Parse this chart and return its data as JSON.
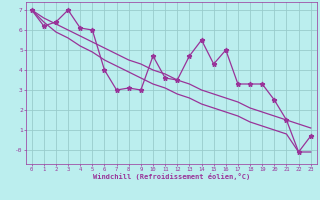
{
  "x": [
    0,
    1,
    2,
    3,
    4,
    5,
    6,
    7,
    8,
    9,
    10,
    11,
    12,
    13,
    14,
    15,
    16,
    17,
    18,
    19,
    20,
    21,
    22,
    23
  ],
  "y_data": [
    7.0,
    6.2,
    6.4,
    7.0,
    6.1,
    6.0,
    4.0,
    3.0,
    3.1,
    3.0,
    4.7,
    3.6,
    3.5,
    4.7,
    5.5,
    4.3,
    5.0,
    3.3,
    3.3,
    3.3,
    2.5,
    1.5,
    -0.1,
    0.7
  ],
  "y_upper": [
    7.0,
    6.6,
    6.3,
    6.0,
    5.7,
    5.4,
    5.1,
    4.8,
    4.5,
    4.3,
    4.0,
    3.8,
    3.5,
    3.3,
    3.0,
    2.8,
    2.6,
    2.4,
    2.1,
    1.9,
    1.7,
    1.5,
    1.3,
    1.1
  ],
  "y_lower": [
    7.0,
    6.4,
    5.9,
    5.6,
    5.2,
    4.9,
    4.5,
    4.2,
    3.9,
    3.6,
    3.3,
    3.1,
    2.8,
    2.6,
    2.3,
    2.1,
    1.9,
    1.7,
    1.4,
    1.2,
    1.0,
    0.8,
    -0.1,
    -0.1
  ],
  "line_color": "#993399",
  "bg_color": "#bbeeee",
  "grid_color": "#99cccc",
  "xlabel": "Windchill (Refroidissement éolien,°C)",
  "ylim": [
    -0.7,
    7.4
  ],
  "xlim": [
    -0.5,
    23.5
  ],
  "yticks": [
    0,
    1,
    2,
    3,
    4,
    5,
    6,
    7
  ],
  "xticks": [
    0,
    1,
    2,
    3,
    4,
    5,
    6,
    7,
    8,
    9,
    10,
    11,
    12,
    13,
    14,
    15,
    16,
    17,
    18,
    19,
    20,
    21,
    22,
    23
  ]
}
